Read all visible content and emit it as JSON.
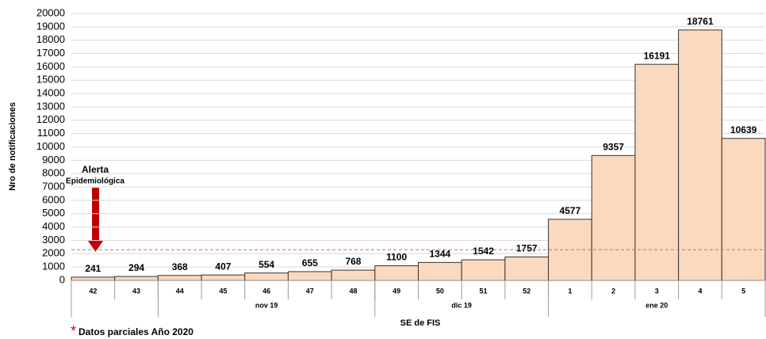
{
  "chart_data": {
    "type": "bar",
    "y_label": "Nro de notificaciones",
    "x_label": "SE de FIS",
    "categories": [
      "42",
      "43",
      "44",
      "45",
      "46",
      "47",
      "48",
      "49",
      "50",
      "51",
      "52",
      "1",
      "2",
      "3",
      "4",
      "5"
    ],
    "groups": [
      null,
      null,
      "nov 19",
      "nov 19",
      "nov 19",
      "nov 19",
      "nov 19",
      "dic 19",
      "dic 19",
      "dic 19",
      "dic 19",
      "ene 20",
      "ene 20",
      "ene 20",
      "ene 20",
      "ene 20"
    ],
    "values": [
      241,
      294,
      368,
      407,
      554,
      655,
      768,
      1100,
      1344,
      1542,
      1757,
      4577,
      9357,
      16191,
      18761,
      10639
    ],
    "color": "#fbd9bf",
    "ylim": [
      0,
      20000
    ],
    "yticks": [
      0,
      1000,
      2000,
      3000,
      4000,
      5000,
      6000,
      7000,
      8000,
      9000,
      10000,
      11000,
      12000,
      13000,
      14000,
      15000,
      16000,
      17000,
      18000,
      19000,
      20000
    ],
    "grid": true,
    "reference_line": 2300,
    "annotation": {
      "title": "Alerta",
      "subtitle": "Epidemiológica"
    },
    "footnote_mark": "*",
    "footnote": "Datos parciales Año 2020"
  }
}
